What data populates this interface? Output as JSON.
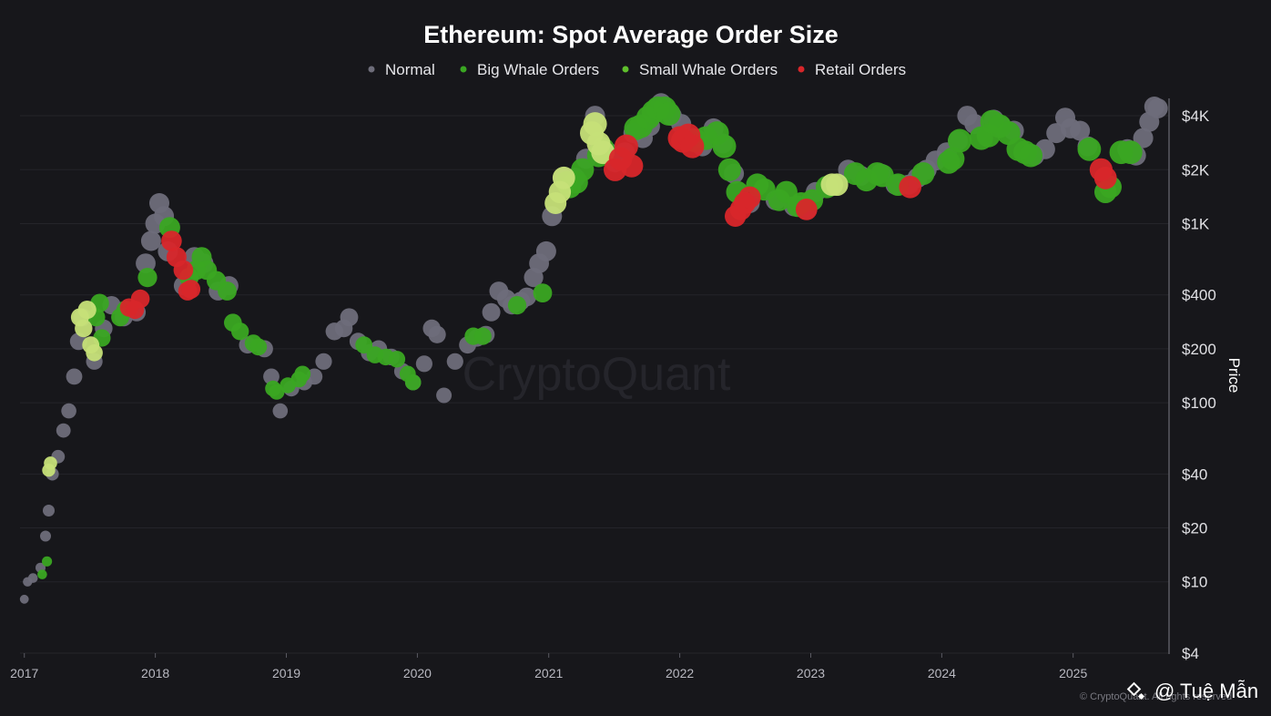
{
  "chart_data": {
    "type": "scatter",
    "title": "Ethereum: Spot Average Order Size",
    "ylabel": "Price",
    "yscale": "log",
    "ylim": [
      4,
      5000
    ],
    "xlim": [
      "2016-12-20",
      "2025-09-15"
    ],
    "legend_position": "top-center",
    "grid": true,
    "x_ticks": [
      "2017",
      "2018",
      "2019",
      "2020",
      "2021",
      "2022",
      "2023",
      "2024",
      "2025"
    ],
    "y_ticks": [
      {
        "value": 4000,
        "label": "$4K"
      },
      {
        "value": 2000,
        "label": "$2K"
      },
      {
        "value": 1000,
        "label": "$1K"
      },
      {
        "value": 400,
        "label": "$400"
      },
      {
        "value": 200,
        "label": "$200"
      },
      {
        "value": 100,
        "label": "$100"
      },
      {
        "value": 40,
        "label": "$40"
      },
      {
        "value": 20,
        "label": "$20"
      },
      {
        "value": 10,
        "label": "$10"
      },
      {
        "value": 4,
        "label": "$4"
      }
    ],
    "legend": [
      {
        "name": "Normal",
        "color": "#6e6d7a"
      },
      {
        "name": "Big Whale Orders",
        "color": "#3aa622"
      },
      {
        "name": "Small Whale Orders",
        "color": "#5fbf2c"
      },
      {
        "name": "Retail Orders",
        "color": "#d8262a"
      }
    ],
    "series": [
      {
        "name": "Normal",
        "color": "#6e6d7a",
        "points": [
          [
            "2017-01-01",
            8
          ],
          [
            "2017-01-10",
            10
          ],
          [
            "2017-01-25",
            10.5
          ],
          [
            "2017-02-15",
            12
          ],
          [
            "2017-03-01",
            18
          ],
          [
            "2017-03-10",
            25
          ],
          [
            "2017-03-20",
            40
          ],
          [
            "2017-04-05",
            50
          ],
          [
            "2017-04-20",
            70
          ],
          [
            "2017-05-05",
            90
          ],
          [
            "2017-05-20",
            140
          ],
          [
            "2017-06-01",
            220
          ],
          [
            "2017-06-12",
            300
          ],
          [
            "2017-07-15",
            170
          ],
          [
            "2017-08-10",
            260
          ],
          [
            "2017-09-01",
            350
          ],
          [
            "2017-10-05",
            300
          ],
          [
            "2017-11-10",
            320
          ],
          [
            "2017-12-05",
            600
          ],
          [
            "2017-12-20",
            800
          ],
          [
            "2018-01-01",
            1000
          ],
          [
            "2018-01-12",
            1300
          ],
          [
            "2018-01-25",
            1100
          ],
          [
            "2018-02-05",
            700
          ],
          [
            "2018-03-20",
            450
          ],
          [
            "2018-04-20",
            650
          ],
          [
            "2018-05-15",
            600
          ],
          [
            "2018-06-25",
            420
          ],
          [
            "2018-07-25",
            450
          ],
          [
            "2018-09-15",
            210
          ],
          [
            "2018-11-01",
            200
          ],
          [
            "2018-11-20",
            140
          ],
          [
            "2018-12-15",
            90
          ],
          [
            "2019-01-15",
            120
          ],
          [
            "2019-02-20",
            130
          ],
          [
            "2019-03-20",
            140
          ],
          [
            "2019-04-15",
            170
          ],
          [
            "2019-05-15",
            250
          ],
          [
            "2019-06-10",
            260
          ],
          [
            "2019-06-25",
            300
          ],
          [
            "2019-07-20",
            220
          ],
          [
            "2019-08-20",
            190
          ],
          [
            "2019-09-15",
            200
          ],
          [
            "2019-10-20",
            180
          ],
          [
            "2019-11-20",
            150
          ],
          [
            "2019-12-20",
            130
          ],
          [
            "2020-01-20",
            165
          ],
          [
            "2020-02-10",
            260
          ],
          [
            "2020-02-25",
            240
          ],
          [
            "2020-03-15",
            110
          ],
          [
            "2020-04-15",
            170
          ],
          [
            "2020-05-20",
            210
          ],
          [
            "2020-06-15",
            230
          ],
          [
            "2020-07-10",
            240
          ],
          [
            "2020-07-25",
            320
          ],
          [
            "2020-08-15",
            420
          ],
          [
            "2020-09-05",
            380
          ],
          [
            "2020-09-20",
            350
          ],
          [
            "2020-10-15",
            370
          ],
          [
            "2020-11-01",
            390
          ],
          [
            "2020-11-20",
            500
          ],
          [
            "2020-12-05",
            600
          ],
          [
            "2020-12-25",
            700
          ],
          [
            "2021-01-10",
            1100
          ],
          [
            "2021-02-10",
            1800
          ],
          [
            "2021-03-15",
            1800
          ],
          [
            "2021-04-15",
            2300
          ],
          [
            "2021-05-10",
            4000
          ],
          [
            "2021-05-25",
            2700
          ],
          [
            "2021-06-15",
            2500
          ],
          [
            "2021-07-05",
            2200
          ],
          [
            "2021-08-01",
            2500
          ],
          [
            "2021-08-25",
            3200
          ],
          [
            "2021-09-20",
            3000
          ],
          [
            "2021-10-10",
            3500
          ],
          [
            "2021-11-10",
            4700
          ],
          [
            "2021-12-10",
            4000
          ],
          [
            "2022-01-05",
            3600
          ],
          [
            "2022-02-05",
            3000
          ],
          [
            "2022-03-05",
            2700
          ],
          [
            "2022-04-05",
            3400
          ],
          [
            "2022-05-01",
            2800
          ],
          [
            "2022-06-01",
            1900
          ],
          [
            "2022-07-15",
            1300
          ],
          [
            "2022-09-25",
            1350
          ],
          [
            "2022-11-15",
            1250
          ],
          [
            "2022-12-20",
            1200
          ],
          [
            "2023-01-15",
            1500
          ],
          [
            "2023-02-20",
            1600
          ],
          [
            "2023-04-15",
            2000
          ],
          [
            "2023-05-20",
            1850
          ],
          [
            "2023-07-15",
            1900
          ],
          [
            "2023-08-25",
            1650
          ],
          [
            "2023-10-01",
            1650
          ],
          [
            "2023-10-25",
            1800
          ],
          [
            "2023-11-20",
            2000
          ],
          [
            "2023-12-15",
            2250
          ],
          [
            "2024-01-15",
            2500
          ],
          [
            "2024-02-15",
            2900
          ],
          [
            "2024-03-12",
            4000
          ],
          [
            "2024-04-01",
            3600
          ],
          [
            "2024-05-25",
            3800
          ],
          [
            "2024-06-15",
            3500
          ],
          [
            "2024-07-20",
            3300
          ],
          [
            "2024-09-15",
            2400
          ],
          [
            "2024-10-15",
            2600
          ],
          [
            "2024-11-15",
            3200
          ],
          [
            "2024-12-10",
            3900
          ],
          [
            "2024-12-25",
            3400
          ],
          [
            "2025-01-20",
            3300
          ],
          [
            "2025-02-10",
            2700
          ],
          [
            "2025-06-01",
            2600
          ],
          [
            "2025-06-25",
            2400
          ],
          [
            "2025-07-15",
            3000
          ],
          [
            "2025-08-01",
            3700
          ],
          [
            "2025-08-15",
            4500
          ],
          [
            "2025-08-25",
            4400
          ]
        ]
      },
      {
        "name": "Big Whale Orders",
        "color": "#3aa622",
        "points": [
          [
            "2017-02-20",
            11
          ],
          [
            "2017-03-05",
            13
          ],
          [
            "2017-07-20",
            300
          ],
          [
            "2017-07-30",
            360
          ],
          [
            "2017-08-05",
            230
          ],
          [
            "2017-09-25",
            300
          ],
          [
            "2017-10-10",
            330
          ],
          [
            "2017-12-10",
            500
          ],
          [
            "2018-02-10",
            950
          ],
          [
            "2018-04-05",
            500
          ],
          [
            "2018-04-25",
            550
          ],
          [
            "2018-05-10",
            650
          ],
          [
            "2018-05-25",
            550
          ],
          [
            "2018-06-20",
            480
          ],
          [
            "2018-07-20",
            420
          ],
          [
            "2018-08-05",
            280
          ],
          [
            "2018-08-25",
            250
          ],
          [
            "2018-10-01",
            215
          ],
          [
            "2018-10-15",
            205
          ],
          [
            "2018-11-25",
            120
          ],
          [
            "2018-12-05",
            115
          ],
          [
            "2019-01-05",
            125
          ],
          [
            "2019-02-05",
            135
          ],
          [
            "2019-02-15",
            145
          ],
          [
            "2019-08-05",
            210
          ],
          [
            "2019-09-05",
            185
          ],
          [
            "2019-10-05",
            180
          ],
          [
            "2019-11-05",
            175
          ],
          [
            "2019-12-05",
            145
          ],
          [
            "2019-12-20",
            130
          ],
          [
            "2020-06-05",
            235
          ],
          [
            "2020-07-01",
            235
          ],
          [
            "2020-10-05",
            350
          ],
          [
            "2020-12-15",
            410
          ],
          [
            "2021-02-20",
            1700
          ],
          [
            "2021-03-01",
            1600
          ],
          [
            "2021-03-20",
            1700
          ],
          [
            "2021-04-05",
            2000
          ],
          [
            "2021-05-20",
            2400
          ],
          [
            "2021-06-01",
            2600
          ],
          [
            "2021-09-01",
            3400
          ],
          [
            "2021-09-15",
            3500
          ],
          [
            "2021-10-05",
            3900
          ],
          [
            "2021-10-20",
            4200
          ],
          [
            "2021-11-01",
            4400
          ],
          [
            "2021-11-20",
            4400
          ],
          [
            "2021-12-01",
            4100
          ],
          [
            "2022-02-15",
            2900
          ],
          [
            "2022-03-15",
            3000
          ],
          [
            "2022-04-15",
            3200
          ],
          [
            "2022-05-05",
            2700
          ],
          [
            "2022-05-20",
            2000
          ],
          [
            "2022-06-10",
            1500
          ],
          [
            "2022-08-05",
            1650
          ],
          [
            "2022-08-25",
            1550
          ],
          [
            "2022-10-05",
            1350
          ],
          [
            "2022-10-25",
            1500
          ],
          [
            "2022-11-25",
            1250
          ],
          [
            "2022-12-05",
            1300
          ],
          [
            "2023-01-05",
            1350
          ],
          [
            "2023-02-15",
            1600
          ],
          [
            "2023-05-05",
            1900
          ],
          [
            "2023-06-05",
            1750
          ],
          [
            "2023-07-05",
            1900
          ],
          [
            "2023-07-20",
            1850
          ],
          [
            "2023-09-01",
            1650
          ],
          [
            "2023-11-10",
            1900
          ],
          [
            "2024-01-20",
            2200
          ],
          [
            "2024-02-01",
            2300
          ],
          [
            "2024-02-20",
            2900
          ],
          [
            "2024-04-20",
            3000
          ],
          [
            "2024-05-10",
            3100
          ],
          [
            "2024-05-20",
            3700
          ],
          [
            "2024-06-10",
            3500
          ],
          [
            "2024-07-05",
            3200
          ],
          [
            "2024-08-01",
            2600
          ],
          [
            "2024-08-20",
            2500
          ],
          [
            "2024-09-05",
            2400
          ],
          [
            "2025-02-15",
            2600
          ],
          [
            "2025-04-01",
            1500
          ],
          [
            "2025-04-15",
            1600
          ],
          [
            "2025-05-15",
            2500
          ],
          [
            "2025-06-10",
            2500
          ]
        ]
      },
      {
        "name": "Small Whale Orders",
        "color": "#c6e078",
        "points": [
          [
            "2017-03-10",
            42
          ],
          [
            "2017-03-15",
            46
          ],
          [
            "2017-06-05",
            300
          ],
          [
            "2017-06-15",
            260
          ],
          [
            "2017-06-25",
            330
          ],
          [
            "2017-07-05",
            210
          ],
          [
            "2017-07-15",
            190
          ],
          [
            "2021-01-20",
            1300
          ],
          [
            "2021-02-01",
            1500
          ],
          [
            "2021-02-12",
            1800
          ],
          [
            "2021-05-01",
            3200
          ],
          [
            "2021-05-10",
            3600
          ],
          [
            "2021-05-20",
            2800
          ],
          [
            "2021-06-01",
            2500
          ],
          [
            "2023-03-01",
            1650
          ],
          [
            "2023-03-15",
            1650
          ]
        ]
      },
      {
        "name": "Retail Orders",
        "color": "#d8262a",
        "points": [
          [
            "2017-10-20",
            340
          ],
          [
            "2017-11-05",
            330
          ],
          [
            "2017-11-20",
            380
          ],
          [
            "2018-02-15",
            800
          ],
          [
            "2018-03-01",
            650
          ],
          [
            "2018-03-20",
            550
          ],
          [
            "2018-04-01",
            420
          ],
          [
            "2018-04-10",
            430
          ],
          [
            "2021-07-05",
            2000
          ],
          [
            "2021-07-20",
            2300
          ],
          [
            "2021-08-05",
            2700
          ],
          [
            "2021-08-20",
            2100
          ],
          [
            "2022-01-01",
            3000
          ],
          [
            "2022-01-10",
            2900
          ],
          [
            "2022-01-25",
            3100
          ],
          [
            "2022-02-05",
            2700
          ],
          [
            "2022-06-05",
            1100
          ],
          [
            "2022-06-20",
            1200
          ],
          [
            "2022-07-01",
            1300
          ],
          [
            "2022-07-15",
            1400
          ],
          [
            "2022-12-20",
            1200
          ],
          [
            "2023-10-05",
            1600
          ],
          [
            "2025-03-20",
            2000
          ],
          [
            "2025-04-01",
            1800
          ]
        ]
      }
    ]
  },
  "watermark": "CryptoQuant",
  "credit": "© CryptoQuant. All rights reserved",
  "author": "@ Tuệ Mẫn"
}
